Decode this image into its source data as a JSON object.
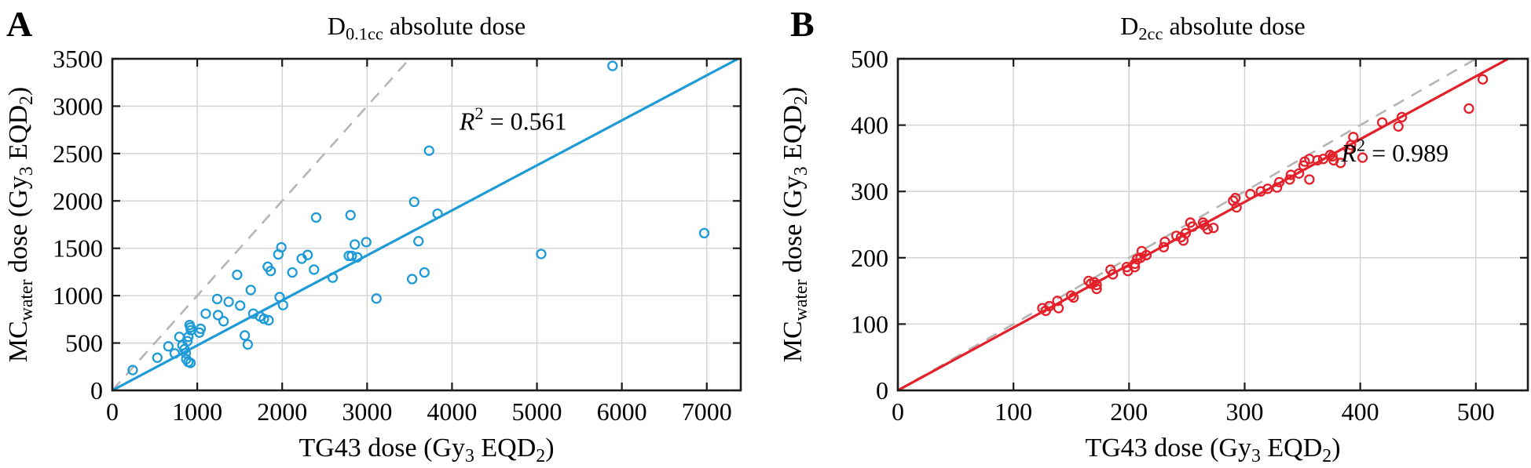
{
  "figure": {
    "background": "#ffffff",
    "colors": {
      "panel_a_accent": "#1e9bd7",
      "panel_b_accent": "#e4202a",
      "identity_line": "#b5b5b5",
      "gridline": "#cfcfcf",
      "axis": "#1a1a1a",
      "text": "#000000"
    }
  },
  "chart_data": [
    {
      "type": "scatter",
      "panel_label": "A",
      "title": "D0.1cc absolute dose",
      "title_parts": [
        {
          "t": "D"
        },
        {
          "t": "0.1cc",
          "sub": true
        },
        {
          "t": " absolute dose"
        }
      ],
      "xlabel": "TG43 dose (Gy3 EQD2)",
      "xlabel_parts": [
        {
          "t": "TG43 dose (Gy"
        },
        {
          "t": "3",
          "sub": true
        },
        {
          "t": " EQD"
        },
        {
          "t": "2",
          "sub": true
        },
        {
          "t": ")"
        }
      ],
      "ylabel": "MCwater dose (Gy3 EQD2)",
      "ylabel_parts": [
        {
          "t": "MC"
        },
        {
          "t": "water",
          "sub": true
        },
        {
          "t": " dose (Gy"
        },
        {
          "t": "3",
          "sub": true
        },
        {
          "t": " EQD"
        },
        {
          "t": "2",
          "sub": true
        },
        {
          "t": ")"
        }
      ],
      "annotation": "R2 = 0.561",
      "annotation_parts": [
        {
          "t": "R",
          "italic": true
        },
        {
          "t": "2",
          "sup": true
        },
        {
          "t": " = 0.561"
        }
      ],
      "annotation_pos": [
        4720,
        2750
      ],
      "xlim": [
        0,
        7400
      ],
      "ylim": [
        0,
        3500
      ],
      "xticks": [
        0,
        1000,
        2000,
        3000,
        4000,
        5000,
        6000,
        7000
      ],
      "yticks": [
        0,
        500,
        1000,
        1500,
        2000,
        2500,
        3000,
        3500
      ],
      "grid": true,
      "legend": "none",
      "identity_line": {
        "style": "dashed",
        "color": "#b5b5b5",
        "from": [
          0,
          0
        ],
        "to": [
          3500,
          3500
        ]
      },
      "fit_line": {
        "style": "solid",
        "color": "#1e9bd7",
        "slope": 0.475,
        "from": [
          0,
          0
        ],
        "to": [
          7368,
          3500
        ]
      },
      "marker": {
        "shape": "open-circle",
        "color": "#1e9bd7",
        "radius": 5.5,
        "stroke_width": 2.3
      },
      "points": [
        [
          240,
          215
        ],
        [
          530,
          345
        ],
        [
          660,
          465
        ],
        [
          735,
          390
        ],
        [
          790,
          565
        ],
        [
          825,
          475
        ],
        [
          850,
          435
        ],
        [
          865,
          395
        ],
        [
          870,
          330
        ],
        [
          885,
          520
        ],
        [
          895,
          565
        ],
        [
          895,
          300
        ],
        [
          910,
          690
        ],
        [
          920,
          665
        ],
        [
          920,
          290
        ],
        [
          925,
          635
        ],
        [
          1025,
          610
        ],
        [
          1040,
          650
        ],
        [
          1100,
          810
        ],
        [
          1235,
          965
        ],
        [
          1245,
          795
        ],
        [
          1310,
          730
        ],
        [
          1370,
          935
        ],
        [
          1470,
          1220
        ],
        [
          1505,
          895
        ],
        [
          1560,
          580
        ],
        [
          1595,
          485
        ],
        [
          1630,
          1060
        ],
        [
          1660,
          810
        ],
        [
          1740,
          780
        ],
        [
          1785,
          755
        ],
        [
          1830,
          1305
        ],
        [
          1840,
          740
        ],
        [
          1865,
          1260
        ],
        [
          1955,
          1435
        ],
        [
          1970,
          985
        ],
        [
          1990,
          1510
        ],
        [
          2010,
          900
        ],
        [
          2120,
          1245
        ],
        [
          2230,
          1390
        ],
        [
          2300,
          1430
        ],
        [
          2375,
          1275
        ],
        [
          2400,
          1825
        ],
        [
          2595,
          1190
        ],
        [
          2785,
          1420
        ],
        [
          2805,
          1850
        ],
        [
          2820,
          1420
        ],
        [
          2855,
          1540
        ],
        [
          2885,
          1405
        ],
        [
          2990,
          1565
        ],
        [
          3110,
          970
        ],
        [
          3530,
          1175
        ],
        [
          3555,
          1990
        ],
        [
          3605,
          1575
        ],
        [
          3675,
          1245
        ],
        [
          3730,
          2530
        ],
        [
          3830,
          1865
        ],
        [
          5050,
          1440
        ],
        [
          5890,
          3425
        ],
        [
          6970,
          1660
        ]
      ]
    },
    {
      "type": "scatter",
      "panel_label": "B",
      "title": "D2cc absolute dose",
      "title_parts": [
        {
          "t": "D"
        },
        {
          "t": "2cc",
          "sub": true
        },
        {
          "t": " absolute dose"
        }
      ],
      "xlabel": "TG43 dose (Gy3 EQD2)",
      "xlabel_parts": [
        {
          "t": "TG43 dose (Gy"
        },
        {
          "t": "3",
          "sub": true
        },
        {
          "t": " EQD"
        },
        {
          "t": "2",
          "sub": true
        },
        {
          "t": ")"
        }
      ],
      "ylabel": "MCwater dose (Gy3 EQD2)",
      "ylabel_parts": [
        {
          "t": "MC"
        },
        {
          "t": "water",
          "sub": true
        },
        {
          "t": " dose (Gy"
        },
        {
          "t": "3",
          "sub": true
        },
        {
          "t": " EQD"
        },
        {
          "t": "2",
          "sub": true
        },
        {
          "t": ")"
        }
      ],
      "annotation": "R2 = 0.989",
      "annotation_parts": [
        {
          "t": "R",
          "italic": true
        },
        {
          "t": "2",
          "sup": true
        },
        {
          "t": " = 0.989"
        }
      ],
      "annotation_pos": [
        430,
        345
      ],
      "xlim": [
        0,
        545
      ],
      "ylim": [
        0,
        500
      ],
      "xticks": [
        0,
        100,
        200,
        300,
        400,
        500
      ],
      "yticks": [
        0,
        100,
        200,
        300,
        400,
        500
      ],
      "grid": true,
      "legend": "none",
      "identity_line": {
        "style": "dashed",
        "color": "#b5b5b5",
        "from": [
          0,
          0
        ],
        "to": [
          500,
          500
        ]
      },
      "fit_line": {
        "style": "solid",
        "color": "#e4202a",
        "slope": 0.947,
        "from": [
          0,
          0
        ],
        "to": [
          528,
          500
        ]
      },
      "marker": {
        "shape": "open-circle",
        "color": "#e4202a",
        "radius": 5.5,
        "stroke_width": 2.3
      },
      "points": [
        [
          125,
          124
        ],
        [
          128,
          120
        ],
        [
          131,
          127
        ],
        [
          138,
          135
        ],
        [
          139,
          124
        ],
        [
          150,
          143
        ],
        [
          152,
          140
        ],
        [
          165,
          165
        ],
        [
          167,
          161
        ],
        [
          170,
          163
        ],
        [
          172,
          159
        ],
        [
          172,
          153
        ],
        [
          184,
          182
        ],
        [
          186,
          175
        ],
        [
          198,
          186
        ],
        [
          199,
          180
        ],
        [
          205,
          191
        ],
        [
          205,
          186
        ],
        [
          207,
          198
        ],
        [
          210,
          200
        ],
        [
          211,
          210
        ],
        [
          215,
          204
        ],
        [
          230,
          216
        ],
        [
          231,
          224
        ],
        [
          241,
          233
        ],
        [
          245,
          231
        ],
        [
          247,
          226
        ],
        [
          249,
          237
        ],
        [
          253,
          253
        ],
        [
          255,
          247
        ],
        [
          264,
          253
        ],
        [
          265,
          249
        ],
        [
          268,
          243
        ],
        [
          273,
          245
        ],
        [
          290,
          286
        ],
        [
          292,
          290
        ],
        [
          293,
          276
        ],
        [
          305,
          296
        ],
        [
          314,
          300
        ],
        [
          320,
          304
        ],
        [
          328,
          306
        ],
        [
          330,
          314
        ],
        [
          339,
          318
        ],
        [
          340,
          325
        ],
        [
          347,
          327
        ],
        [
          351,
          339
        ],
        [
          352,
          345
        ],
        [
          356,
          349
        ],
        [
          356,
          318
        ],
        [
          363,
          347
        ],
        [
          368,
          349
        ],
        [
          374,
          355
        ],
        [
          376,
          353
        ],
        [
          377,
          347
        ],
        [
          383,
          343
        ],
        [
          390,
          364
        ],
        [
          392,
          370
        ],
        [
          394,
          382
        ],
        [
          402,
          351
        ],
        [
          419,
          404
        ],
        [
          433,
          398
        ],
        [
          436,
          412
        ],
        [
          494,
          425
        ],
        [
          506,
          469
        ]
      ]
    }
  ]
}
